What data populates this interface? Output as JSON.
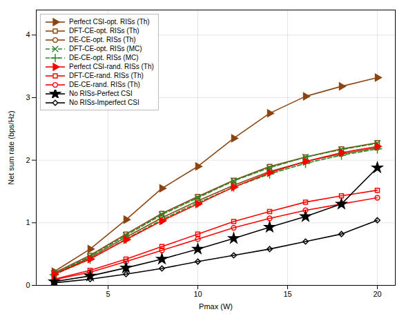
{
  "chart_data": {
    "type": "line",
    "x": [
      2,
      4,
      6,
      8,
      10,
      12,
      14,
      16,
      18,
      20
    ],
    "series": [
      {
        "name": "Perfect CSI-opt. RISs (Th)",
        "color": "#8B4513",
        "marker": "triangle-right",
        "line_style": "solid",
        "values": [
          0.22,
          0.58,
          1.05,
          1.55,
          1.9,
          2.35,
          2.75,
          3.02,
          3.18,
          3.32
        ]
      },
      {
        "name": "DFT-CE-opt. RISs (Th)",
        "color": "#8B4513",
        "marker": "square",
        "line_style": "solid",
        "values": [
          0.2,
          0.48,
          0.82,
          1.15,
          1.42,
          1.68,
          1.9,
          2.05,
          2.18,
          2.28
        ]
      },
      {
        "name": "DE-CE-opt. RISs (Th)",
        "color": "#8B4513",
        "marker": "circle",
        "line_style": "solid",
        "values": [
          0.18,
          0.44,
          0.77,
          1.08,
          1.35,
          1.6,
          1.82,
          1.98,
          2.1,
          2.2
        ]
      },
      {
        "name": "DFT-CE-opt. RISs (MC)",
        "color": "#228B22",
        "marker": "x",
        "line_style": "dashed",
        "values": [
          0.19,
          0.46,
          0.8,
          1.13,
          1.4,
          1.67,
          1.88,
          2.05,
          2.17,
          2.27
        ]
      },
      {
        "name": "DE-CE-opt. RISs (MC)",
        "color": "#228B22",
        "marker": "plus",
        "line_style": "dashed",
        "values": [
          0.17,
          0.42,
          0.74,
          1.05,
          1.32,
          1.57,
          1.78,
          1.95,
          2.08,
          2.18
        ]
      },
      {
        "name": "Perfect CSI-rand. RISs (Th)",
        "color": "#FF0000",
        "marker": "triangle-right",
        "line_style": "solid",
        "values": [
          0.18,
          0.42,
          0.73,
          1.03,
          1.3,
          1.57,
          1.8,
          1.98,
          2.12,
          2.22
        ]
      },
      {
        "name": "DFT-CE-rand. RISs (Th)",
        "color": "#FF0000",
        "marker": "square",
        "line_style": "solid",
        "values": [
          0.1,
          0.24,
          0.42,
          0.62,
          0.82,
          1.02,
          1.18,
          1.33,
          1.43,
          1.52
        ]
      },
      {
        "name": "DE-CE-rand. RISs (Th)",
        "color": "#FF0000",
        "marker": "circle",
        "line_style": "solid",
        "values": [
          0.09,
          0.21,
          0.38,
          0.56,
          0.74,
          0.92,
          1.07,
          1.2,
          1.3,
          1.4
        ]
      },
      {
        "name": "No RISs-Perfect CSI",
        "color": "#000000",
        "marker": "star",
        "line_style": "solid",
        "values": [
          0.06,
          0.15,
          0.28,
          0.42,
          0.58,
          0.75,
          0.93,
          1.1,
          1.3,
          1.88
        ]
      },
      {
        "name": "No RISs-Imperfect CSI",
        "color": "#000000",
        "marker": "diamond",
        "line_style": "solid",
        "values": [
          0.04,
          0.1,
          0.18,
          0.27,
          0.38,
          0.48,
          0.58,
          0.7,
          0.82,
          1.04
        ]
      }
    ],
    "xlim": [
      1,
      21
    ],
    "ylim": [
      0,
      4.4
    ],
    "xticks": [
      5,
      10,
      15,
      20
    ],
    "yticks": [
      0,
      1,
      2,
      3,
      4
    ],
    "xlabel": "Pmax (W)",
    "ylabel": "Net sum rate (bps/Hz)",
    "grid": true,
    "legend": "upper left"
  }
}
